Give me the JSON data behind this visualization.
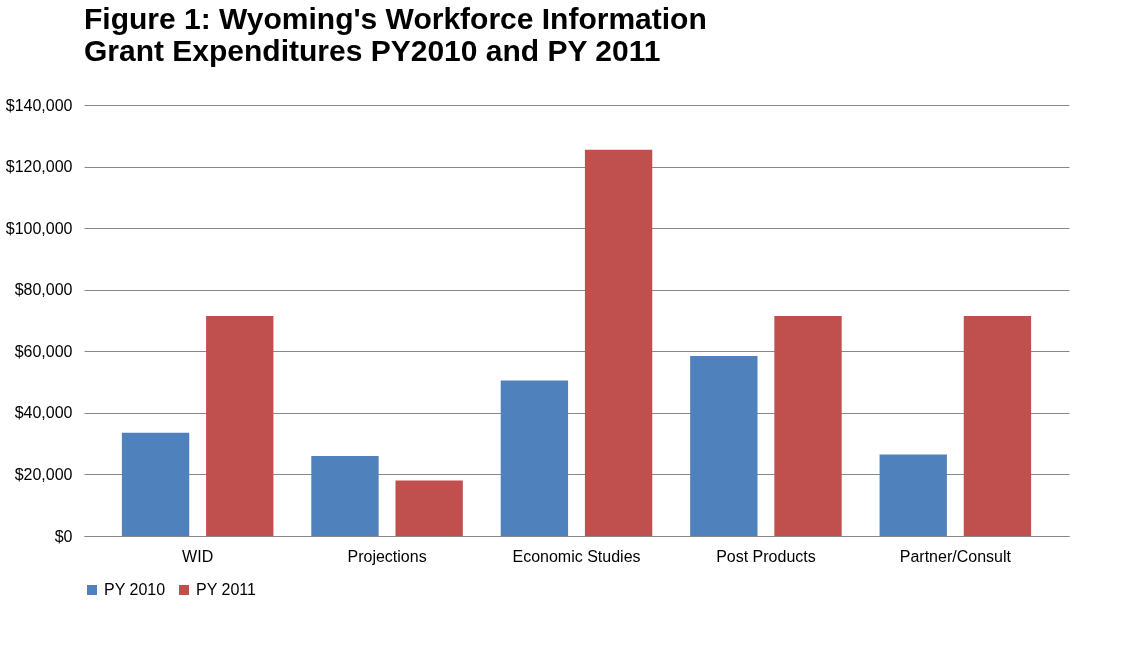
{
  "chart_data": {
    "type": "bar",
    "title": [
      "Figure 1: Wyoming's Workforce Information",
      "  Grant Expenditures PY2010 and PY 2011"
    ],
    "categories": [
      "WID",
      "Projections",
      "Economic Studies",
      "Post Products",
      "Partner/Consult"
    ],
    "series": [
      {
        "name": "PY 2010",
        "color": "#4f81bd",
        "values": [
          33500,
          26000,
          50500,
          58500,
          26500
        ]
      },
      {
        "name": "PY 2011",
        "color": "#c0504d",
        "values": [
          71500,
          18000,
          125500,
          71500,
          71500
        ]
      }
    ],
    "ylim": [
      0,
      140000
    ],
    "yticks": [
      {
        "value": 0,
        "label": "$0"
      },
      {
        "value": 20000,
        "label": "$20,000"
      },
      {
        "value": 40000,
        "label": "$40,000"
      },
      {
        "value": 60000,
        "label": "$60,000"
      },
      {
        "value": 80000,
        "label": "$80,000"
      },
      {
        "value": 100000,
        "label": "$100,000"
      },
      {
        "value": 120000,
        "label": "$120,000"
      },
      {
        "value": 140000,
        "label": "$140,000"
      }
    ],
    "grid": "y",
    "legend": "bottom"
  }
}
